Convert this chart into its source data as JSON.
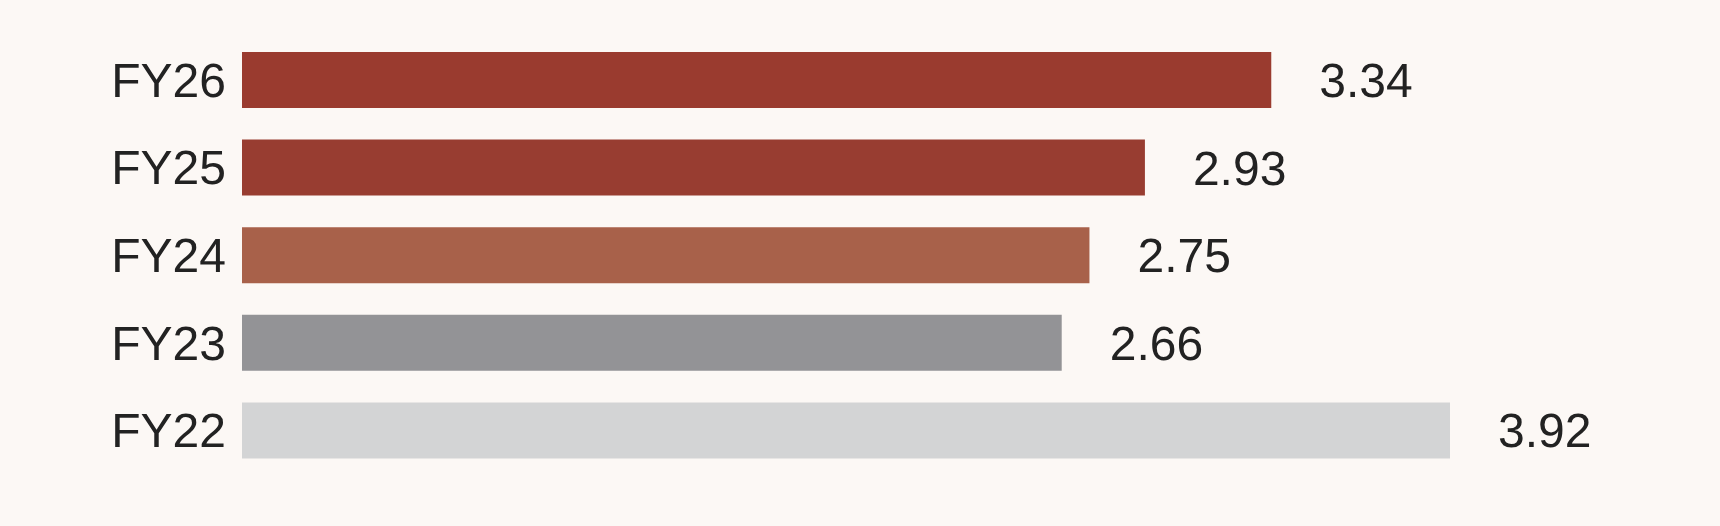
{
  "chart_data": {
    "type": "bar",
    "orientation": "horizontal",
    "categories": [
      "FY26",
      "FY25",
      "FY24",
      "FY23",
      "FY22"
    ],
    "values": [
      3.34,
      2.93,
      2.75,
      2.66,
      3.92
    ],
    "colors": [
      "#9a3b2f",
      "#983d31",
      "#a8614a",
      "#939396",
      "#d3d4d5"
    ],
    "data_labels": true
  }
}
